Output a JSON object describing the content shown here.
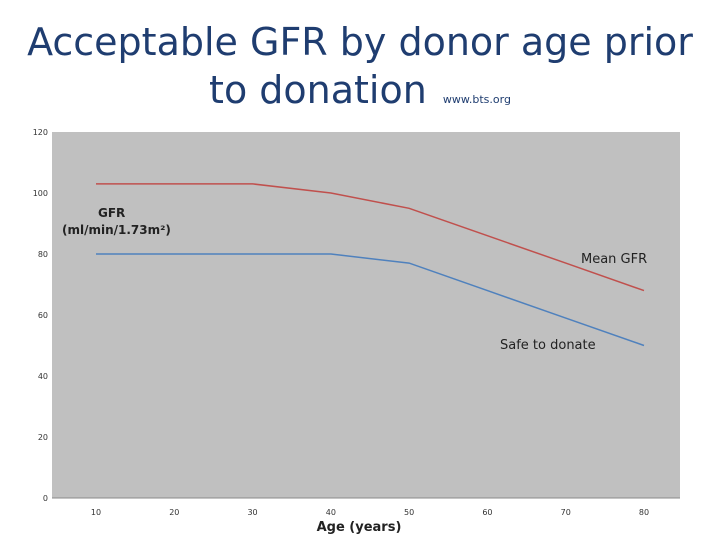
{
  "title": {
    "line1": "Acceptable GFR by donor age prior",
    "line2": "to donation",
    "source": "www.bts.org"
  },
  "chart_data": {
    "type": "line",
    "title": "",
    "xlabel": "Age (years)",
    "ylabel_line1": "GFR",
    "ylabel_line2": "(ml/min/1.73m²)",
    "xlim": [
      10,
      80
    ],
    "ylim": [
      0,
      120
    ],
    "x_ticks": [
      10,
      20,
      30,
      40,
      50,
      60,
      70,
      80
    ],
    "y_ticks": [
      0,
      20,
      40,
      60,
      80,
      100,
      120
    ],
    "grid": false,
    "plot_background": "#c0c0c0",
    "series": [
      {
        "name": "Mean GFR",
        "color": "#c0504d",
        "points": [
          [
            10,
            103
          ],
          [
            20,
            103
          ],
          [
            30,
            103
          ],
          [
            40,
            100
          ],
          [
            50,
            95
          ],
          [
            60,
            86
          ],
          [
            70,
            77
          ],
          [
            80,
            68
          ]
        ]
      },
      {
        "name": "Safe to donate",
        "color": "#4f81bd",
        "points": [
          [
            10,
            80
          ],
          [
            20,
            80
          ],
          [
            30,
            80
          ],
          [
            40,
            80
          ],
          [
            50,
            77
          ],
          [
            60,
            68
          ],
          [
            70,
            59
          ],
          [
            80,
            50
          ]
        ]
      }
    ]
  }
}
